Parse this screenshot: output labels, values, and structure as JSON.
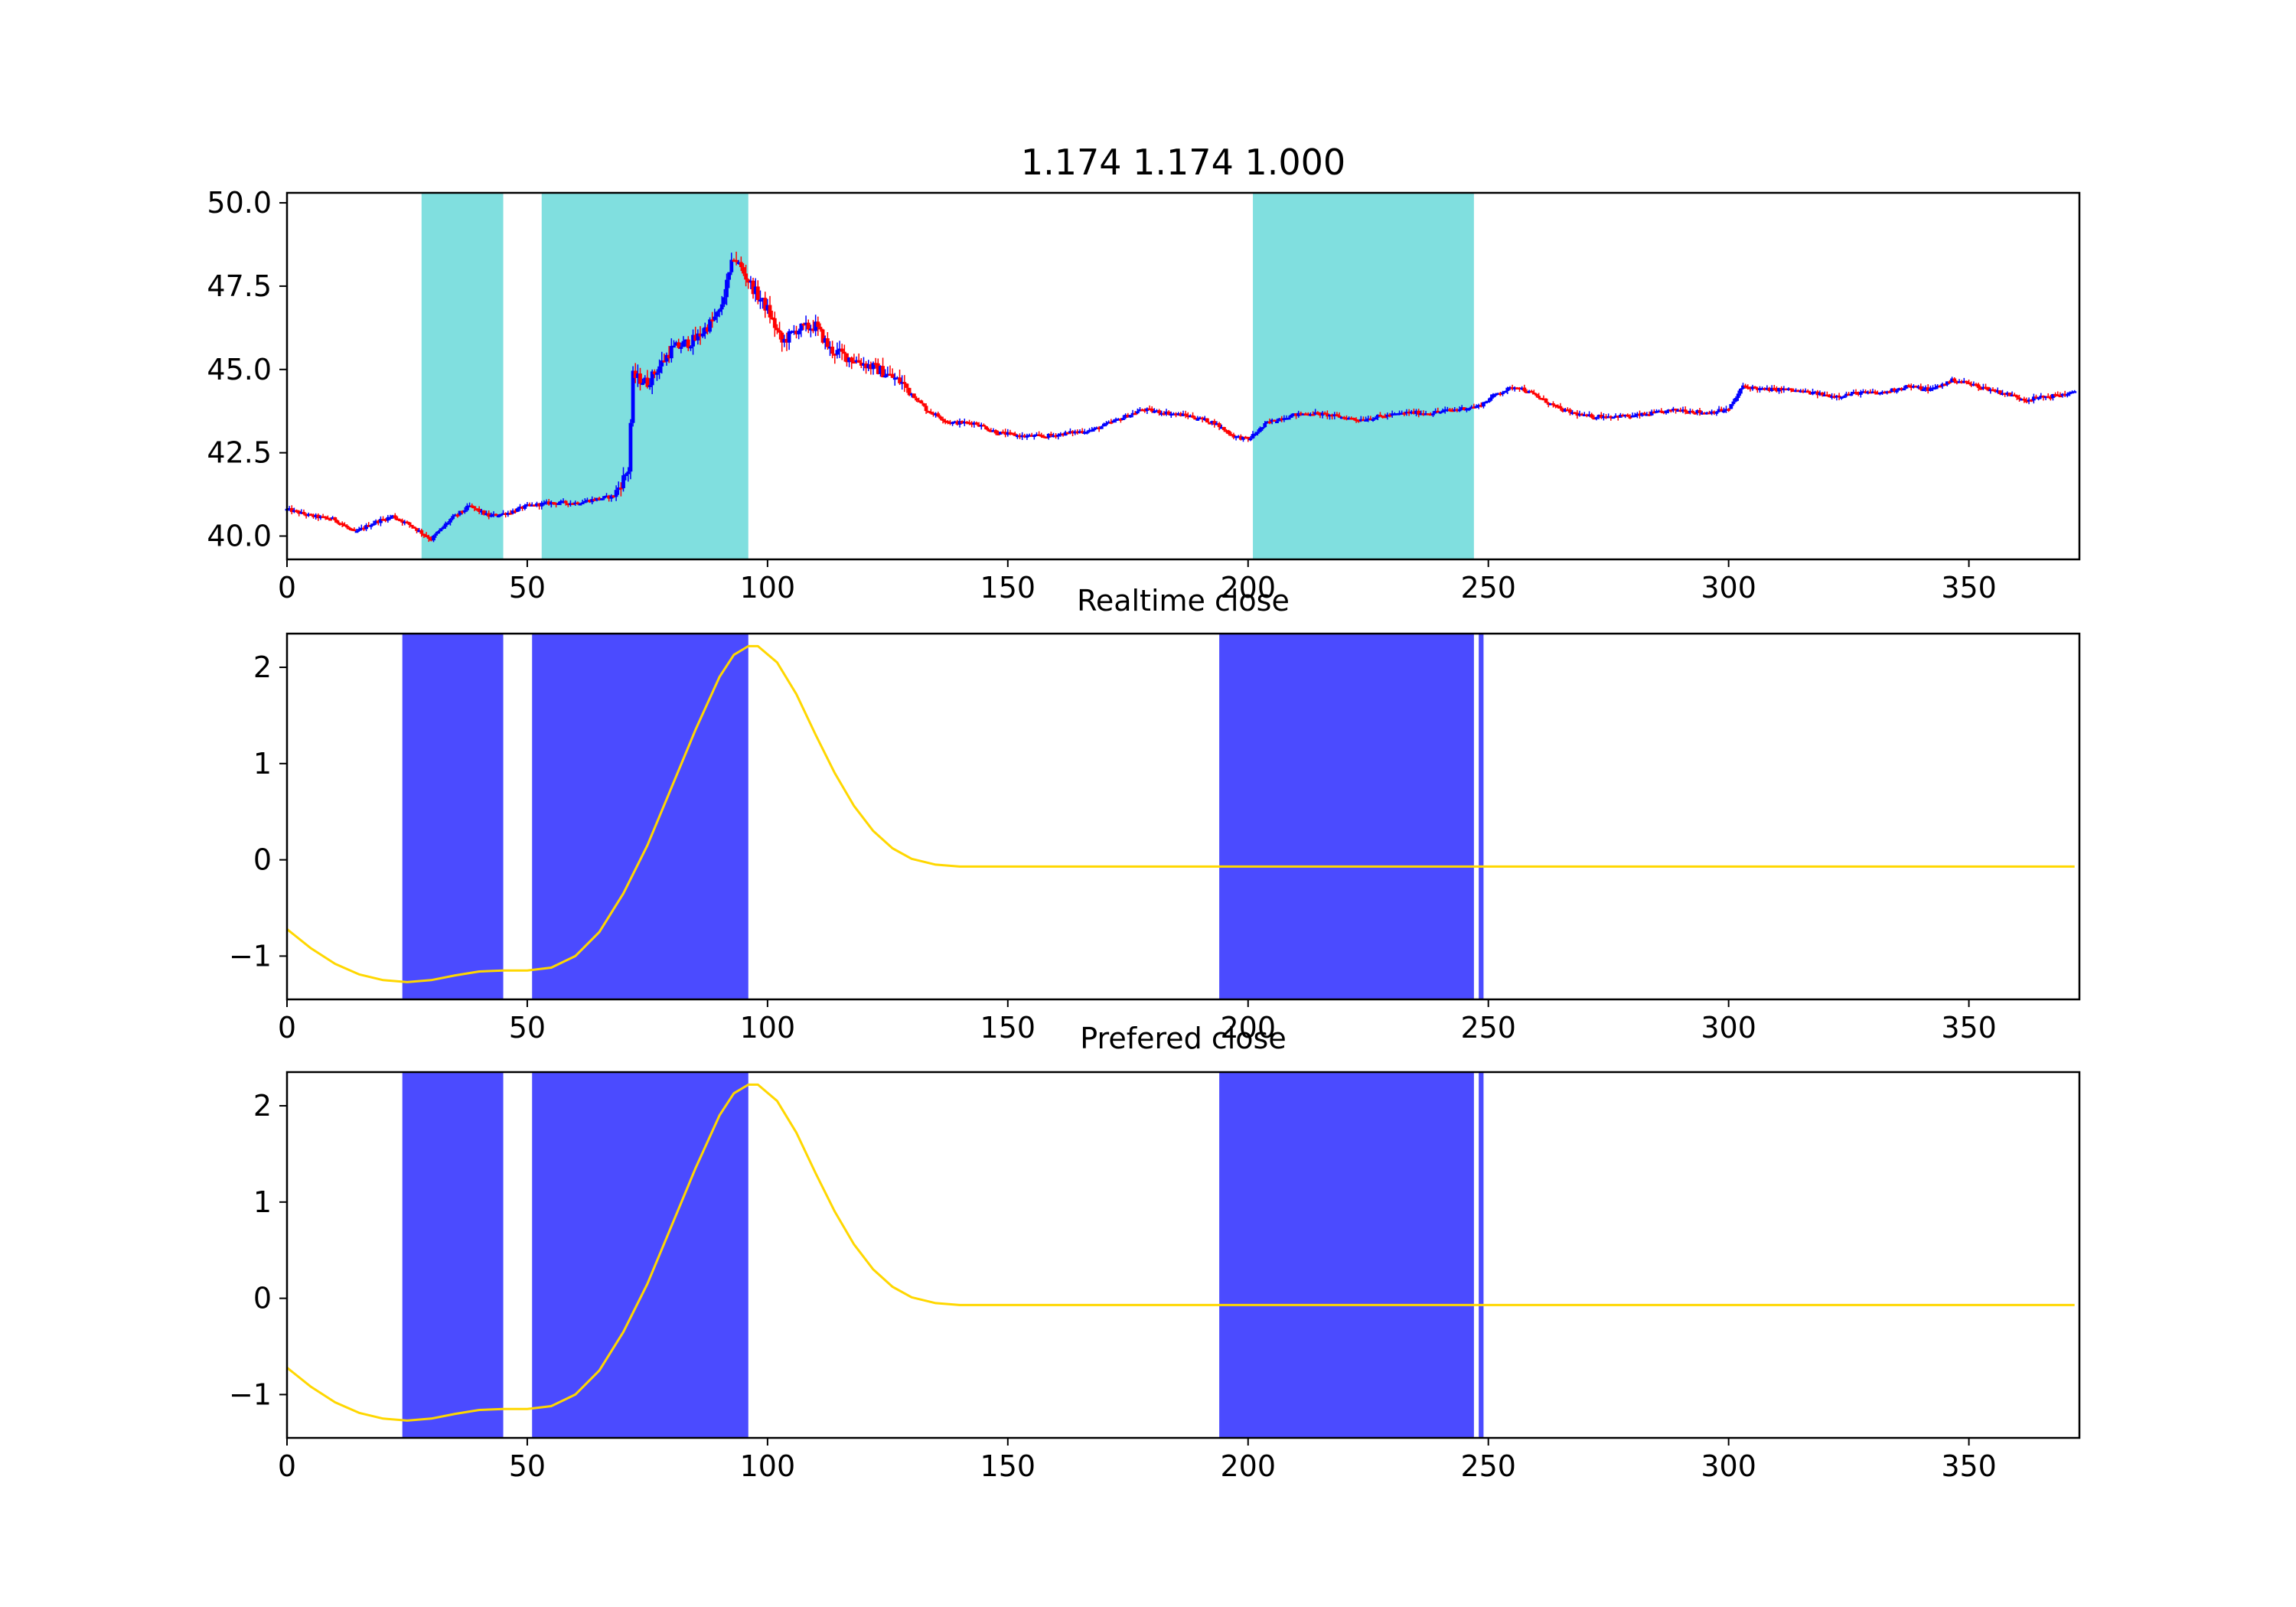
{
  "figure": {
    "background": "#ffffff"
  },
  "chart_data": [
    {
      "type": "candlestick",
      "title": "1.174 1.174 1.000",
      "xlim": [
        0,
        373
      ],
      "ylim": [
        39.3,
        50.3
      ],
      "xticks": [
        0,
        50,
        100,
        150,
        200,
        250,
        300,
        350
      ],
      "yticks": [
        40.0,
        42.5,
        45.0,
        47.5,
        50.0
      ],
      "ytick_labels": [
        "40.0",
        "42.5",
        "45.0",
        "47.5",
        "50.0"
      ],
      "shaded_spans": [
        [
          28,
          45
        ],
        [
          53,
          96
        ],
        [
          201,
          247
        ]
      ],
      "span_color": "#80dfdf",
      "up_color": "#0000ff",
      "down_color": "#ff0000",
      "close_anchors": [
        [
          0,
          40.8
        ],
        [
          5,
          40.6
        ],
        [
          10,
          40.5
        ],
        [
          14,
          40.1
        ],
        [
          18,
          40.4
        ],
        [
          22,
          40.6
        ],
        [
          26,
          40.3
        ],
        [
          30,
          39.9
        ],
        [
          34,
          40.5
        ],
        [
          38,
          40.9
        ],
        [
          42,
          40.6
        ],
        [
          46,
          40.7
        ],
        [
          50,
          40.9
        ],
        [
          55,
          41.0
        ],
        [
          60,
          41.0
        ],
        [
          64,
          41.1
        ],
        [
          68,
          41.2
        ],
        [
          71,
          42.0
        ],
        [
          72,
          44.8
        ],
        [
          75,
          44.6
        ],
        [
          80,
          45.6
        ],
        [
          85,
          45.9
        ],
        [
          90,
          46.7
        ],
        [
          93,
          48.4
        ],
        [
          95,
          47.9
        ],
        [
          98,
          47.2
        ],
        [
          100,
          46.8
        ],
        [
          103,
          45.8
        ],
        [
          106,
          46.2
        ],
        [
          110,
          46.3
        ],
        [
          113,
          45.6
        ],
        [
          118,
          45.3
        ],
        [
          123,
          45.0
        ],
        [
          128,
          44.6
        ],
        [
          133,
          43.8
        ],
        [
          138,
          43.4
        ],
        [
          143,
          43.4
        ],
        [
          148,
          43.1
        ],
        [
          153,
          43.0
        ],
        [
          158,
          43.0
        ],
        [
          163,
          43.1
        ],
        [
          168,
          43.2
        ],
        [
          173,
          43.5
        ],
        [
          178,
          43.8
        ],
        [
          183,
          43.7
        ],
        [
          188,
          43.6
        ],
        [
          193,
          43.4
        ],
        [
          197,
          43.0
        ],
        [
          200,
          42.9
        ],
        [
          204,
          43.4
        ],
        [
          208,
          43.6
        ],
        [
          213,
          43.7
        ],
        [
          218,
          43.6
        ],
        [
          223,
          43.5
        ],
        [
          228,
          43.6
        ],
        [
          233,
          43.7
        ],
        [
          238,
          43.7
        ],
        [
          243,
          43.8
        ],
        [
          248,
          43.9
        ],
        [
          252,
          44.3
        ],
        [
          256,
          44.5
        ],
        [
          260,
          44.2
        ],
        [
          265,
          43.8
        ],
        [
          270,
          43.6
        ],
        [
          275,
          43.6
        ],
        [
          280,
          43.6
        ],
        [
          285,
          43.7
        ],
        [
          290,
          43.8
        ],
        [
          295,
          43.7
        ],
        [
          300,
          43.8
        ],
        [
          303,
          44.5
        ],
        [
          307,
          44.4
        ],
        [
          312,
          44.4
        ],
        [
          317,
          44.3
        ],
        [
          322,
          44.2
        ],
        [
          327,
          44.3
        ],
        [
          332,
          44.3
        ],
        [
          337,
          44.5
        ],
        [
          342,
          44.4
        ],
        [
          347,
          44.7
        ],
        [
          352,
          44.5
        ],
        [
          357,
          44.3
        ],
        [
          362,
          44.1
        ],
        [
          367,
          44.2
        ],
        [
          372,
          44.3
        ]
      ]
    },
    {
      "type": "line",
      "title": "Realtime close",
      "xlim": [
        0,
        373
      ],
      "ylim": [
        -1.45,
        2.35
      ],
      "xticks": [
        0,
        50,
        100,
        150,
        200,
        250,
        300,
        350
      ],
      "yticks": [
        -1,
        0,
        1,
        2
      ],
      "ytick_labels": [
        "−1",
        "0",
        "1",
        "2"
      ],
      "shaded_spans": [
        [
          24,
          45
        ],
        [
          51,
          96
        ],
        [
          194,
          247
        ],
        [
          248,
          249
        ]
      ],
      "span_color": "#4b4bff",
      "line_color": "#ffd700",
      "series": [
        {
          "points": [
            [
              0,
              -0.72
            ],
            [
              5,
              -0.92
            ],
            [
              10,
              -1.08
            ],
            [
              15,
              -1.19
            ],
            [
              20,
              -1.25
            ],
            [
              25,
              -1.27
            ],
            [
              30,
              -1.25
            ],
            [
              35,
              -1.2
            ],
            [
              40,
              -1.16
            ],
            [
              45,
              -1.15
            ],
            [
              50,
              -1.15
            ],
            [
              55,
              -1.12
            ],
            [
              60,
              -1.0
            ],
            [
              65,
              -0.75
            ],
            [
              70,
              -0.35
            ],
            [
              75,
              0.15
            ],
            [
              80,
              0.75
            ],
            [
              85,
              1.35
            ],
            [
              90,
              1.9
            ],
            [
              93,
              2.13
            ],
            [
              96,
              2.22
            ],
            [
              98,
              2.22
            ],
            [
              102,
              2.05
            ],
            [
              106,
              1.72
            ],
            [
              110,
              1.3
            ],
            [
              114,
              0.9
            ],
            [
              118,
              0.56
            ],
            [
              122,
              0.3
            ],
            [
              126,
              0.12
            ],
            [
              130,
              0.01
            ],
            [
              135,
              -0.05
            ],
            [
              140,
              -0.07
            ],
            [
              150,
              -0.07
            ],
            [
              200,
              -0.07
            ],
            [
              250,
              -0.07
            ],
            [
              300,
              -0.07
            ],
            [
              350,
              -0.07
            ],
            [
              372,
              -0.07
            ]
          ]
        }
      ]
    },
    {
      "type": "line",
      "title": "Prefered close",
      "xlim": [
        0,
        373
      ],
      "ylim": [
        -1.45,
        2.35
      ],
      "xticks": [
        0,
        50,
        100,
        150,
        200,
        250,
        300,
        350
      ],
      "yticks": [
        -1,
        0,
        1,
        2
      ],
      "ytick_labels": [
        "−1",
        "0",
        "1",
        "2"
      ],
      "shaded_spans": [
        [
          24,
          45
        ],
        [
          51,
          96
        ],
        [
          194,
          247
        ],
        [
          248,
          249
        ]
      ],
      "span_color": "#4b4bff",
      "line_color": "#ffd700",
      "series": [
        {
          "points": [
            [
              0,
              -0.72
            ],
            [
              5,
              -0.92
            ],
            [
              10,
              -1.08
            ],
            [
              15,
              -1.19
            ],
            [
              20,
              -1.25
            ],
            [
              25,
              -1.27
            ],
            [
              30,
              -1.25
            ],
            [
              35,
              -1.2
            ],
            [
              40,
              -1.16
            ],
            [
              45,
              -1.15
            ],
            [
              50,
              -1.15
            ],
            [
              55,
              -1.12
            ],
            [
              60,
              -1.0
            ],
            [
              65,
              -0.75
            ],
            [
              70,
              -0.35
            ],
            [
              75,
              0.15
            ],
            [
              80,
              0.75
            ],
            [
              85,
              1.35
            ],
            [
              90,
              1.9
            ],
            [
              93,
              2.13
            ],
            [
              96,
              2.22
            ],
            [
              98,
              2.22
            ],
            [
              102,
              2.05
            ],
            [
              106,
              1.72
            ],
            [
              110,
              1.3
            ],
            [
              114,
              0.9
            ],
            [
              118,
              0.56
            ],
            [
              122,
              0.3
            ],
            [
              126,
              0.12
            ],
            [
              130,
              0.01
            ],
            [
              135,
              -0.05
            ],
            [
              140,
              -0.07
            ],
            [
              150,
              -0.07
            ],
            [
              200,
              -0.07
            ],
            [
              250,
              -0.07
            ],
            [
              300,
              -0.07
            ],
            [
              350,
              -0.07
            ],
            [
              372,
              -0.07
            ]
          ]
        }
      ]
    }
  ]
}
